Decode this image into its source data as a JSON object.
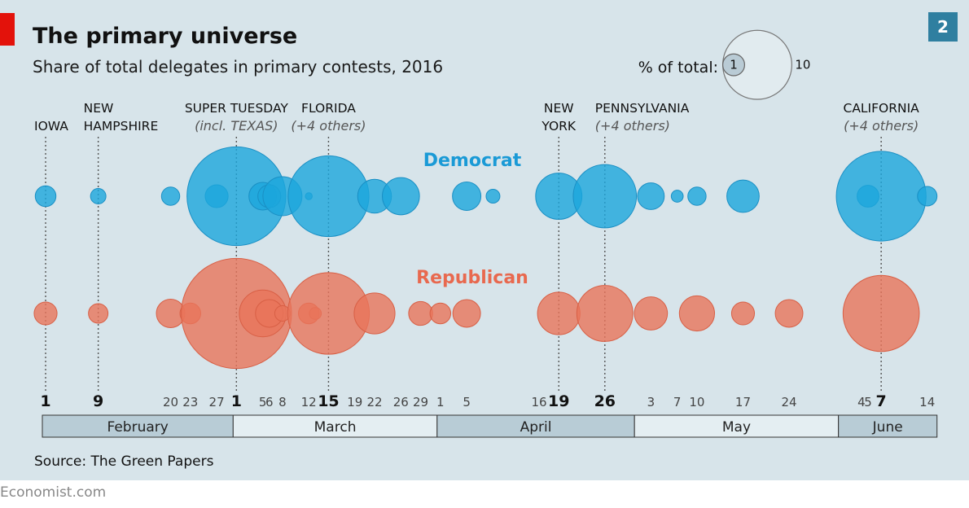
{
  "header": {
    "title": "The primary universe",
    "subtitle": "Share of total delegates in primary contests, 2016",
    "chart_number": "2"
  },
  "legend": {
    "label": "% of total:",
    "small_value_label": "1",
    "large_value_label": "10",
    "small_value": 1,
    "large_value": 10
  },
  "source": "Source: The Green Papers",
  "brand": "Economist.com",
  "colors": {
    "accent_red": "#e3120b",
    "democrat": "#1ba6dc",
    "democrat_stroke": "#1a8fc4",
    "republican": "#e8745a",
    "republican_stroke": "#d85f45",
    "chart_number_bg": "#2f7fa0",
    "month_dark": "#b8ccd6",
    "month_light": "#e4eef2"
  },
  "chart_data": {
    "type": "bubble-timeline",
    "title": "The primary universe",
    "subtitle": "Share of total delegates in primary contests, 2016",
    "unit": "% of total",
    "series": [
      {
        "name": "Democrat",
        "color": "#1ba6dc"
      },
      {
        "name": "Republican",
        "color": "#e8745a"
      }
    ],
    "months": [
      {
        "name": "February",
        "start": "2016-02-01",
        "end": "2016-02-29"
      },
      {
        "name": "March",
        "start": "2016-03-01",
        "end": "2016-03-31"
      },
      {
        "name": "April",
        "start": "2016-04-01",
        "end": "2016-04-30"
      },
      {
        "name": "May",
        "start": "2016-05-01",
        "end": "2016-05-31"
      },
      {
        "name": "June",
        "start": "2016-06-01",
        "end": "2016-06-14"
      }
    ],
    "tick_labels": [
      {
        "date": "2016-02-01",
        "label": "1",
        "bold": true
      },
      {
        "date": "2016-02-09",
        "label": "9",
        "bold": true
      },
      {
        "date": "2016-02-20",
        "label": "20",
        "bold": false
      },
      {
        "date": "2016-02-23",
        "label": "23",
        "bold": false
      },
      {
        "date": "2016-02-27",
        "label": "27",
        "bold": false
      },
      {
        "date": "2016-03-01",
        "label": "1",
        "bold": true
      },
      {
        "date": "2016-03-05",
        "label": "5",
        "bold": false
      },
      {
        "date": "2016-03-06",
        "label": "6",
        "bold": false
      },
      {
        "date": "2016-03-08",
        "label": "8",
        "bold": false
      },
      {
        "date": "2016-03-12",
        "label": "12",
        "bold": false
      },
      {
        "date": "2016-03-15",
        "label": "15",
        "bold": true
      },
      {
        "date": "2016-03-19",
        "label": "19",
        "bold": false
      },
      {
        "date": "2016-03-22",
        "label": "22",
        "bold": false
      },
      {
        "date": "2016-03-26",
        "label": "26",
        "bold": false
      },
      {
        "date": "2016-03-29",
        "label": "29",
        "bold": false
      },
      {
        "date": "2016-04-01",
        "label": "1",
        "bold": false
      },
      {
        "date": "2016-04-05",
        "label": "5",
        "bold": false
      },
      {
        "date": "2016-04-16",
        "label": "16",
        "bold": false
      },
      {
        "date": "2016-04-19",
        "label": "19",
        "bold": true
      },
      {
        "date": "2016-04-26",
        "label": "26",
        "bold": true
      },
      {
        "date": "2016-05-03",
        "label": "3",
        "bold": false
      },
      {
        "date": "2016-05-07",
        "label": "7",
        "bold": false
      },
      {
        "date": "2016-05-10",
        "label": "10",
        "bold": false
      },
      {
        "date": "2016-05-17",
        "label": "17",
        "bold": false
      },
      {
        "date": "2016-05-24",
        "label": "24",
        "bold": false
      },
      {
        "date": "2016-06-04",
        "label": "4",
        "bold": false
      },
      {
        "date": "2016-06-05",
        "label": "5",
        "bold": false
      },
      {
        "date": "2016-06-07",
        "label": "7",
        "bold": true
      },
      {
        "date": "2016-06-14",
        "label": "14",
        "bold": false
      }
    ],
    "annotations": [
      {
        "date": "2016-02-01",
        "lines": [
          "IOWA"
        ],
        "note": ""
      },
      {
        "date": "2016-02-09",
        "lines": [
          "NEW",
          "HAMPSHIRE"
        ],
        "note": ""
      },
      {
        "date": "2016-03-01",
        "lines": [
          "SUPER TUESDAY"
        ],
        "note": "(incl. TEXAS)"
      },
      {
        "date": "2016-03-15",
        "lines": [
          "FLORIDA"
        ],
        "note": "(+4 others)"
      },
      {
        "date": "2016-04-19",
        "lines": [
          "NEW",
          "YORK"
        ],
        "note": ""
      },
      {
        "date": "2016-04-26",
        "lines": [
          "PENNSYLVANIA"
        ],
        "note": "(+4 others)"
      },
      {
        "date": "2016-06-07",
        "lines": [
          "CALIFORNIA"
        ],
        "note": "(+4 others)"
      }
    ],
    "democrat": [
      {
        "date": "2016-02-01",
        "share": 0.9
      },
      {
        "date": "2016-02-09",
        "share": 0.5
      },
      {
        "date": "2016-02-20",
        "share": 0.7
      },
      {
        "date": "2016-02-27",
        "share": 1.1
      },
      {
        "date": "2016-03-01",
        "share": 20.5
      },
      {
        "date": "2016-03-05",
        "share": 1.6
      },
      {
        "date": "2016-03-06",
        "share": 1.1
      },
      {
        "date": "2016-03-08",
        "share": 3.2
      },
      {
        "date": "2016-03-12",
        "share": 0.1
      },
      {
        "date": "2016-03-15",
        "share": 13.7
      },
      {
        "date": "2016-03-22",
        "share": 2.4
      },
      {
        "date": "2016-03-26",
        "share": 2.9
      },
      {
        "date": "2016-04-05",
        "share": 1.7
      },
      {
        "date": "2016-04-09",
        "share": 0.4
      },
      {
        "date": "2016-04-19",
        "share": 4.5
      },
      {
        "date": "2016-04-26",
        "share": 8.4
      },
      {
        "date": "2016-05-03",
        "share": 1.5
      },
      {
        "date": "2016-05-07",
        "share": 0.3
      },
      {
        "date": "2016-05-10",
        "share": 0.7
      },
      {
        "date": "2016-05-17",
        "share": 2.2
      },
      {
        "date": "2016-06-05",
        "share": 1.0
      },
      {
        "date": "2016-06-07",
        "share": 16.9
      },
      {
        "date": "2016-06-14",
        "share": 0.8
      }
    ],
    "republican": [
      {
        "date": "2016-02-01",
        "share": 1.1
      },
      {
        "date": "2016-02-09",
        "share": 0.8
      },
      {
        "date": "2016-02-20",
        "share": 1.7
      },
      {
        "date": "2016-02-23",
        "share": 0.9
      },
      {
        "date": "2016-03-01",
        "share": 25.5
      },
      {
        "date": "2016-03-05",
        "share": 4.6
      },
      {
        "date": "2016-03-06",
        "share": 1.6
      },
      {
        "date": "2016-03-08",
        "share": 0.5
      },
      {
        "date": "2016-03-12",
        "share": 0.9
      },
      {
        "date": "2016-03-13",
        "share": 0.3
      },
      {
        "date": "2016-03-15",
        "share": 14.0
      },
      {
        "date": "2016-03-22",
        "share": 3.5
      },
      {
        "date": "2016-03-29",
        "share": 1.2
      },
      {
        "date": "2016-04-01",
        "share": 0.9
      },
      {
        "date": "2016-04-05",
        "share": 1.6
      },
      {
        "date": "2016-04-19",
        "share": 3.8
      },
      {
        "date": "2016-04-26",
        "share": 6.6
      },
      {
        "date": "2016-05-03",
        "share": 2.3
      },
      {
        "date": "2016-05-10",
        "share": 2.6
      },
      {
        "date": "2016-05-17",
        "share": 1.1
      },
      {
        "date": "2016-05-24",
        "share": 1.6
      },
      {
        "date": "2016-06-07",
        "share": 12.2
      }
    ]
  }
}
